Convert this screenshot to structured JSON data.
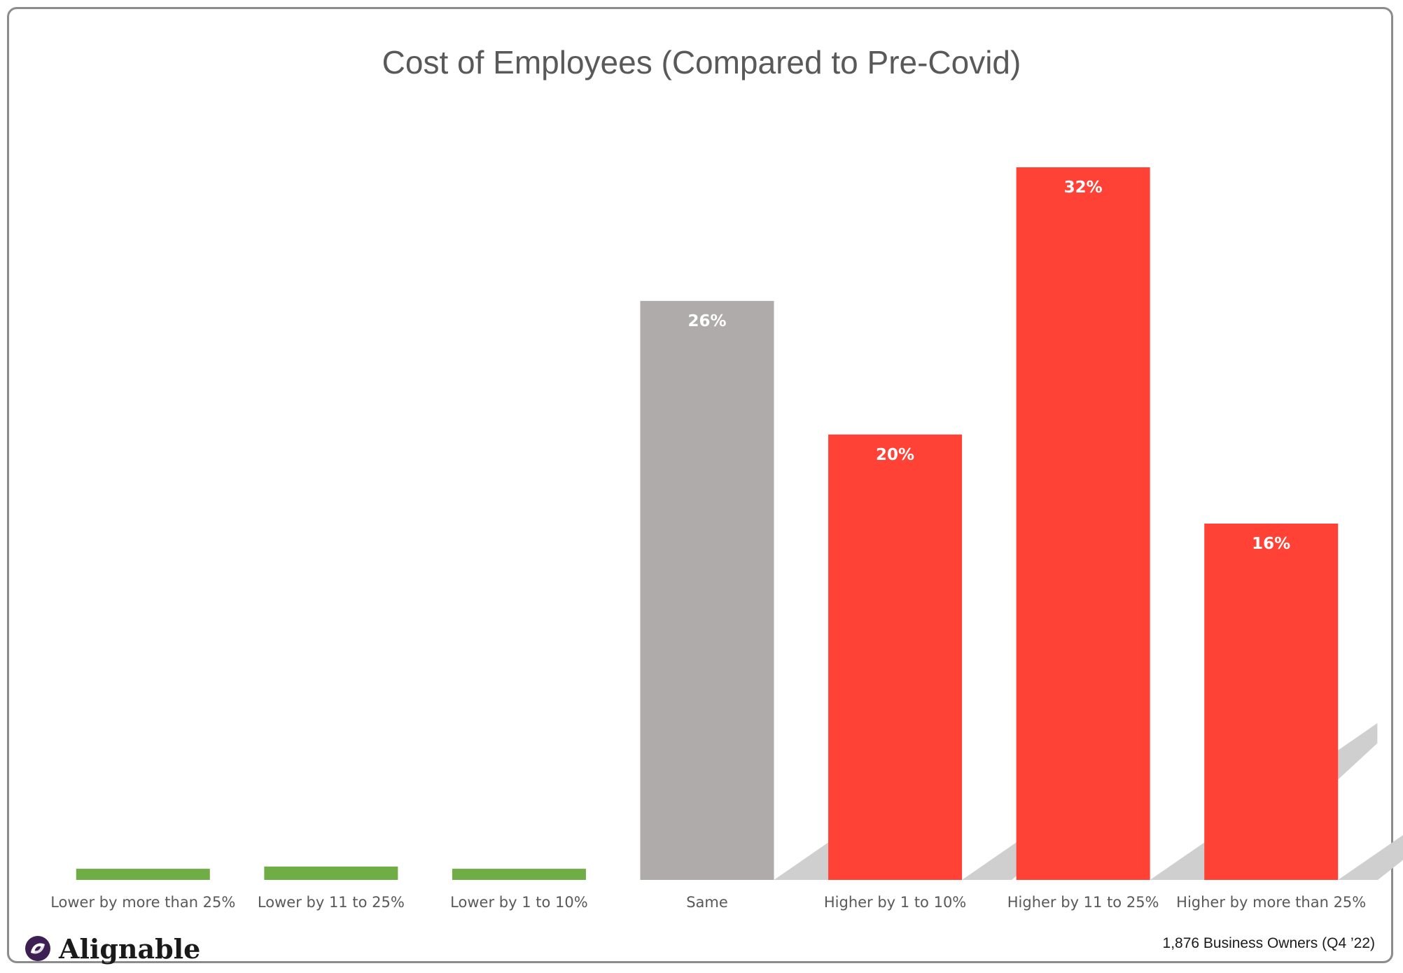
{
  "chart_data": {
    "type": "bar",
    "title": "Cost of Employees (Compared to Pre-Covid)",
    "categories": [
      "Lower by more than 25%",
      "Lower by 11 to 25%",
      "Lower by 1 to 10%",
      "Same",
      "Higher by 1 to 10%",
      "Higher by 11 to 25%",
      "Higher by more than 25%"
    ],
    "values": [
      0.5,
      0.6,
      0.5,
      26,
      20,
      32,
      16
    ],
    "data_labels": [
      "",
      "",
      "",
      "26%",
      "20%",
      "32%",
      "16%"
    ],
    "colors": [
      "#70ad47",
      "#70ad47",
      "#70ad47",
      "#afabab",
      "#ff4136",
      "#ff4136",
      "#ff4136"
    ],
    "ylim": [
      0,
      32
    ],
    "grid": false,
    "legend": "none"
  },
  "branding": {
    "logo_text": "Alignable",
    "logo_icon": "alignable-logo-icon"
  },
  "source_note": "1,876 Business Owners (Q4 ’22)"
}
